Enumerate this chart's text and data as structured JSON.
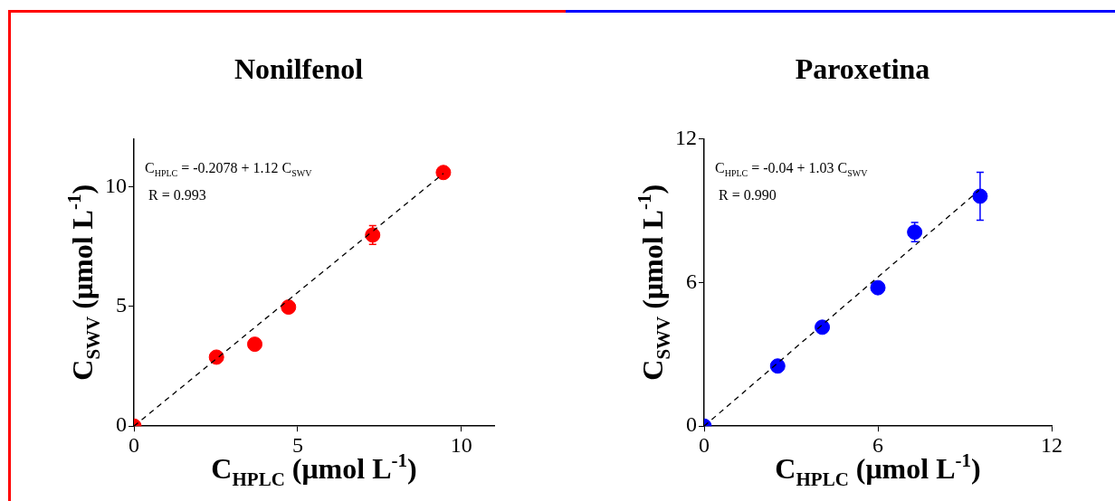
{
  "chart_data": [
    {
      "type": "scatter",
      "title": "Nonilfenol",
      "xlabel": "C$_{HPLC}$ (μmol L$^{-1}$)",
      "ylabel": "C$_{SWV}$ (μmol L$^{-1}$)",
      "xlim": [
        0,
        11
      ],
      "ylim": [
        0,
        12
      ],
      "xticks": [
        0,
        5,
        10
      ],
      "yticks": [
        0,
        5,
        10
      ],
      "marker": "circle",
      "annotations": [
        "C$_{HPLC}$ = -0.2078 + 1.12 C$_{SWV}$",
        "R = 0.993"
      ],
      "series": [
        {
          "type": "scatter",
          "color": "#ff0000",
          "x": [
            0,
            2.52,
            3.69,
            4.72,
            7.29,
            9.45
          ],
          "values": [
            0,
            2.88,
            3.42,
            4.97,
            7.98,
            10.59
          ],
          "errors": [
            null,
            null,
            null,
            null,
            0.39,
            null
          ]
        },
        {
          "type": "line",
          "color": "#000000",
          "line_style": "dashed",
          "marker": "none",
          "x": [
            0,
            9.45
          ],
          "values": [
            0,
            10.55
          ]
        }
      ]
    },
    {
      "type": "scatter",
      "title": "Paroxetina",
      "xlabel": "C$_{HPLC}$ (μmol L$^{-1}$)",
      "ylabel": "C$_{SWV}$ (μmol L$^{-1}$)",
      "xlim": [
        0,
        12
      ],
      "ylim": [
        0,
        12
      ],
      "xticks": [
        0,
        6,
        12
      ],
      "yticks": [
        0,
        6,
        12
      ],
      "marker": "circle",
      "annotations": [
        "C$_{HPLC}$ = -0.04 + 1.03 C$_{SWV}$",
        "R = 0.990"
      ],
      "series": [
        {
          "type": "scatter",
          "color": "#0000ff",
          "x": [
            0,
            2.54,
            4.08,
            6.0,
            7.27,
            9.53
          ],
          "values": [
            0,
            2.51,
            4.13,
            5.78,
            8.1,
            9.6
          ],
          "errors": [
            null,
            null,
            null,
            null,
            0.4,
            1.0
          ]
        },
        {
          "type": "line",
          "color": "#000000",
          "line_style": "dashed",
          "marker": "none",
          "x": [
            0,
            9.5
          ],
          "values": [
            0,
            9.85
          ]
        }
      ]
    }
  ]
}
